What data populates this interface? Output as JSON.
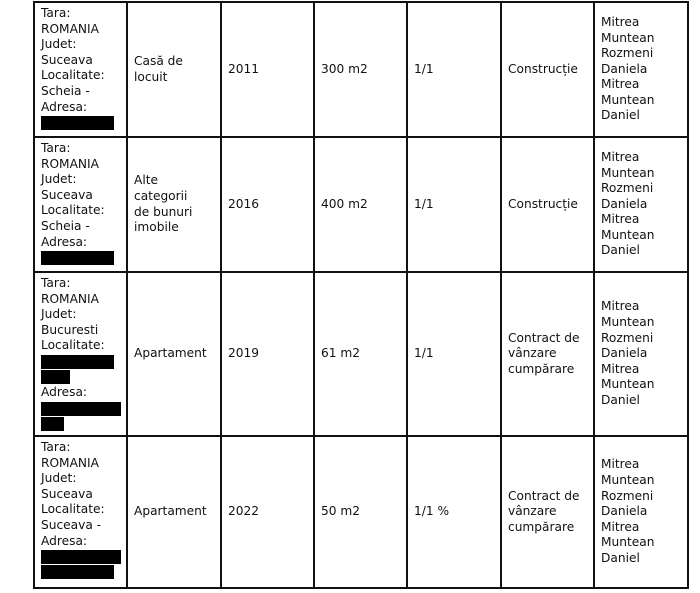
{
  "rows": [
    {
      "address": [
        {
          "text": "Tara:"
        },
        {
          "text": "ROMANIA"
        },
        {
          "text": "Judet:"
        },
        {
          "text": "Suceava"
        },
        {
          "text": "Localitate:"
        },
        {
          "text": "Scheia -"
        },
        {
          "text": "Adresa:"
        },
        {
          "redacted": true
        }
      ],
      "category": "Casă de\nlocuit",
      "year": "2011",
      "area": "300 m2",
      "share": "1/1",
      "mode": "Construcție",
      "owners": "Mitrea\nMuntean\nRozmeni\nDaniela\nMitrea\nMuntean\nDaniel"
    },
    {
      "address": [
        {
          "text": "Tara:"
        },
        {
          "text": "ROMANIA"
        },
        {
          "text": "Judet:"
        },
        {
          "text": "Suceava"
        },
        {
          "text": "Localitate:"
        },
        {
          "text": "Scheia -"
        },
        {
          "text": "Adresa:"
        },
        {
          "redacted": true
        }
      ],
      "category": "Alte categorii\nde bunuri\nimobile",
      "year": "2016",
      "area": "400 m2",
      "share": "1/1",
      "mode": "Construcție",
      "owners": "Mitrea\nMuntean\nRozmeni\nDaniela\nMitrea\nMuntean\nDaniel"
    },
    {
      "address": [
        {
          "text": "Tara:"
        },
        {
          "text": "ROMANIA"
        },
        {
          "text": "Judet:"
        },
        {
          "text": "Bucuresti"
        },
        {
          "text": "Localitate:"
        },
        {
          "redacted": true
        },
        {
          "redacted": true
        },
        {
          "text": "Adresa:"
        },
        {
          "redacted": true
        },
        {
          "redacted": true
        }
      ],
      "category": "Apartament",
      "year": "2019",
      "area": "61 m2",
      "share": "1/1",
      "mode": "Contract de\nvânzare\ncumpărare",
      "owners": "Mitrea\nMuntean\nRozmeni\nDaniela\nMitrea\nMuntean\nDaniel"
    },
    {
      "address": [
        {
          "text": "Tara:"
        },
        {
          "text": "ROMANIA"
        },
        {
          "text": "Judet:"
        },
        {
          "text": "Suceava"
        },
        {
          "text": "Localitate:"
        },
        {
          "text": "Suceava -"
        },
        {
          "text": "Adresa:"
        },
        {
          "redacted": true
        },
        {
          "redacted": true
        }
      ],
      "category": "Apartament",
      "year": "2022",
      "area": "50 m2",
      "share": "1/1 %",
      "mode": "Contract de\nvânzare\ncumpărare",
      "owners": "Mitrea\nMuntean\nRozmeni\nDaniela\nMitrea\nMuntean\nDaniel"
    }
  ]
}
